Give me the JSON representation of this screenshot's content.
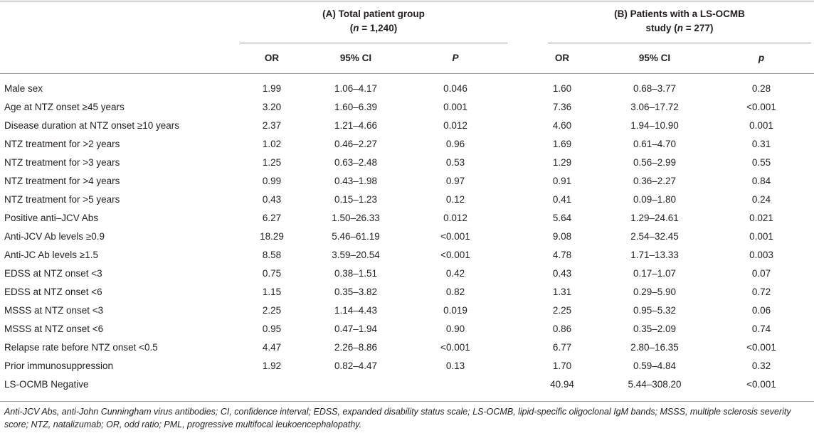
{
  "groups": {
    "a": {
      "line1": "(A) Total patient group",
      "n_prefix": "(",
      "n_sym": "n",
      "n_rest": " = 1,240)"
    },
    "b": {
      "line1": "(B) Patients with a LS-OCMB",
      "line2_prefix": "study (",
      "n_sym": "n",
      "n_rest": " = 277)"
    }
  },
  "columns": {
    "a": {
      "or": "OR",
      "ci": "95% CI",
      "p": "P"
    },
    "b": {
      "or": "OR",
      "ci": "95% CI",
      "p": "p"
    }
  },
  "rows": [
    {
      "label": "Male sex",
      "a_or": "1.99",
      "a_ci": "1.06–4.17",
      "a_p": "0.046",
      "b_or": "1.60",
      "b_ci": "0.68–3.77",
      "b_p": "0.28"
    },
    {
      "label": "Age at NTZ onset ≥45 years",
      "a_or": "3.20",
      "a_ci": "1.60–6.39",
      "a_p": "0.001",
      "b_or": "7.36",
      "b_ci": "3.06–17.72",
      "b_p": "<0.001"
    },
    {
      "label": "Disease duration at NTZ onset ≥10 years",
      "a_or": "2.37",
      "a_ci": "1.21–4.66",
      "a_p": "0.012",
      "b_or": "4.60",
      "b_ci": "1.94–10.90",
      "b_p": "0.001"
    },
    {
      "label": "NTZ treatment for >2 years",
      "a_or": "1.02",
      "a_ci": "0.46–2.27",
      "a_p": "0.96",
      "b_or": "1.69",
      "b_ci": "0.61–4.70",
      "b_p": "0.31"
    },
    {
      "label": "NTZ treatment for >3 years",
      "a_or": "1.25",
      "a_ci": "0.63–2.48",
      "a_p": "0.53",
      "b_or": "1.29",
      "b_ci": "0.56–2.99",
      "b_p": "0.55"
    },
    {
      "label": "NTZ treatment for >4 years",
      "a_or": "0.99",
      "a_ci": "0.43–1.98",
      "a_p": "0.97",
      "b_or": "0.91",
      "b_ci": "0.36–2.27",
      "b_p": "0.84"
    },
    {
      "label": "NTZ treatment for >5 years",
      "a_or": "0.43",
      "a_ci": "0.15–1.23",
      "a_p": "0.12",
      "b_or": "0.41",
      "b_ci": "0.09–1.80",
      "b_p": "0.24"
    },
    {
      "label": "Positive anti–JCV Abs",
      "a_or": "6.27",
      "a_ci": "1.50–26.33",
      "a_p": "0.012",
      "b_or": "5.64",
      "b_ci": "1.29–24.61",
      "b_p": "0.021"
    },
    {
      "label": "Anti-JCV Ab levels ≥0.9",
      "a_or": "18.29",
      "a_ci": "5.46–61.19",
      "a_p": "<0.001",
      "b_or": "9.08",
      "b_ci": "2.54–32.45",
      "b_p": "0.001"
    },
    {
      "label": "Anti-JC Ab levels ≥1.5",
      "a_or": "8.58",
      "a_ci": "3.59–20.54",
      "a_p": "<0.001",
      "b_or": "4.78",
      "b_ci": "1.71–13.33",
      "b_p": "0.003"
    },
    {
      "label": "EDSS at NTZ onset <3",
      "a_or": "0.75",
      "a_ci": "0.38–1.51",
      "a_p": "0.42",
      "b_or": "0.43",
      "b_ci": "0.17–1.07",
      "b_p": "0.07"
    },
    {
      "label": "EDSS at NTZ onset <6",
      "a_or": "1.15",
      "a_ci": "0.35–3.82",
      "a_p": "0.82",
      "b_or": "1.31",
      "b_ci": "0.29–5.90",
      "b_p": "0.72"
    },
    {
      "label": "MSSS at NTZ onset <3",
      "a_or": "2.25",
      "a_ci": "1.14–4.43",
      "a_p": "0.019",
      "b_or": "2.25",
      "b_ci": "0.95–5.32",
      "b_p": "0.06"
    },
    {
      "label": "MSSS at NTZ onset <6",
      "a_or": "0.95",
      "a_ci": "0.47–1.94",
      "a_p": "0.90",
      "b_or": "0.86",
      "b_ci": "0.35–2.09",
      "b_p": "0.74"
    },
    {
      "label": "Relapse rate before NTZ onset <0.5",
      "a_or": "4.47",
      "a_ci": "2.26–8.86",
      "a_p": "<0.001",
      "b_or": "6.77",
      "b_ci": "2.80–16.35",
      "b_p": "<0.001"
    },
    {
      "label": "Prior immunosuppression",
      "a_or": "1.92",
      "a_ci": "0.82–4.47",
      "a_p": "0.13",
      "b_or": "1.70",
      "b_ci": "0.59–4.84",
      "b_p": "0.32"
    },
    {
      "label": "LS-OCMB Negative",
      "a_or": "",
      "a_ci": "",
      "a_p": "",
      "b_or": "40.94",
      "b_ci": "5.44–308.20",
      "b_p": "<0.001"
    }
  ],
  "footnote": "Anti-JCV Abs, anti-John Cunningham virus antibodies; CI, confidence interval; EDSS, expanded disability status scale; LS-OCMB, lipid-specific oligoclonal IgM bands; MSSS, multiple sclerosis severity score; NTZ, natalizumab; OR, odd ratio; PML, progressive multifocal leukoencephalopathy."
}
